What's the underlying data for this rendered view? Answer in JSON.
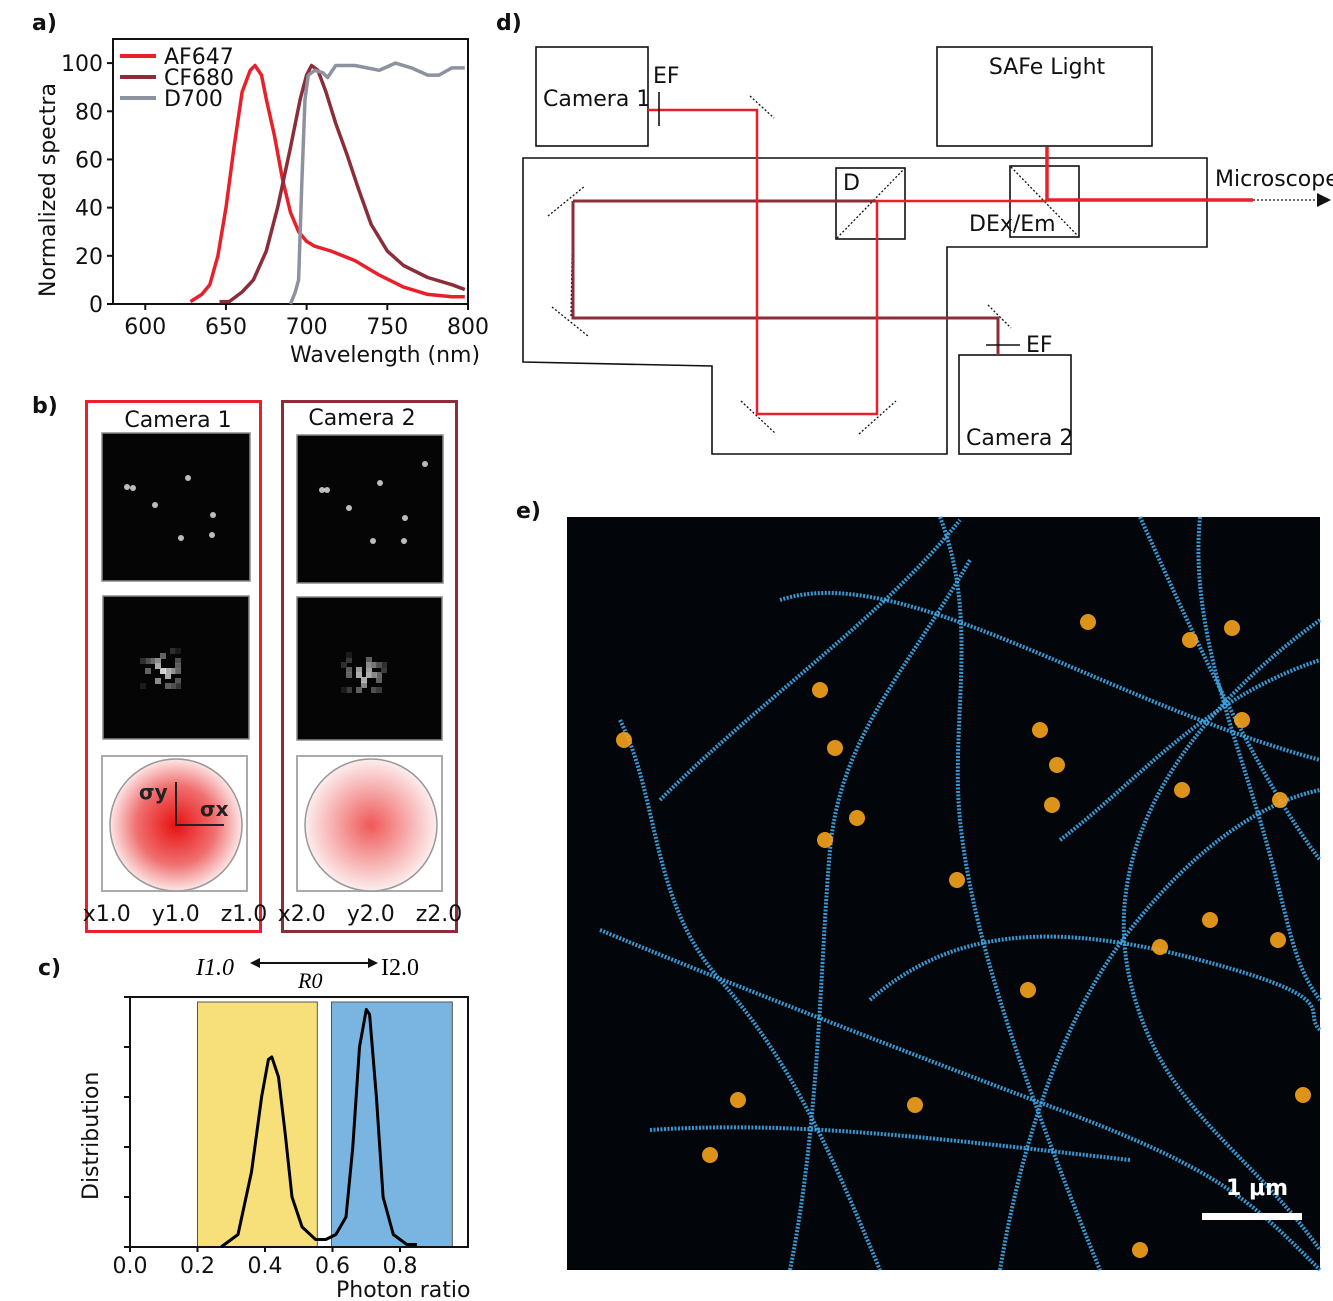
{
  "panel_labels": {
    "a": "a)",
    "b": "b)",
    "c": "c)",
    "d": "d)",
    "e": "e)"
  },
  "chart_data": [
    {
      "panel": "a",
      "type": "line",
      "xlabel": "Wavelength (nm)",
      "ylabel": "Normalized spectra",
      "xlim": [
        580,
        800
      ],
      "ylim": [
        0,
        110
      ],
      "xticks": [
        "600",
        "650",
        "700",
        "750",
        "800"
      ],
      "yticks": [
        "0",
        "20",
        "40",
        "60",
        "80",
        "100"
      ],
      "legend": "top-left",
      "series": [
        {
          "name": "AF647",
          "color": "#e8202a",
          "x": [
            628,
            635,
            640,
            645,
            650,
            655,
            660,
            665,
            668,
            672,
            675,
            680,
            685,
            690,
            695,
            700,
            705,
            715,
            730,
            745,
            760,
            775,
            790,
            798
          ],
          "y": [
            1,
            4,
            8,
            20,
            40,
            65,
            88,
            97,
            99,
            95,
            85,
            70,
            52,
            38,
            30,
            26,
            24,
            22,
            18,
            12,
            7,
            4,
            3,
            3
          ]
        },
        {
          "name": "CF680",
          "color": "#8b2e3a",
          "x": [
            646,
            652,
            660,
            667,
            675,
            682,
            690,
            696,
            700,
            703,
            707,
            712,
            718,
            725,
            732,
            740,
            750,
            760,
            775,
            790,
            798
          ],
          "y": [
            1,
            1,
            5,
            10,
            22,
            40,
            65,
            85,
            95,
            99,
            97,
            88,
            75,
            62,
            48,
            33,
            22,
            16,
            11,
            8,
            6
          ]
        },
        {
          "name": "D700",
          "color": "#8e929e",
          "x": [
            690,
            693,
            695,
            697,
            699,
            701,
            705,
            710,
            713,
            718,
            730,
            745,
            755,
            765,
            775,
            782,
            790,
            798
          ],
          "y": [
            0,
            5,
            10,
            50,
            85,
            95,
            97,
            96,
            94,
            99,
            99,
            97,
            100,
            98,
            95,
            95,
            98,
            98
          ]
        }
      ]
    },
    {
      "panel": "c",
      "type": "line",
      "xlabel": "Photon ratio",
      "ylabel": "Distribution",
      "xlim": [
        0,
        1.0
      ],
      "ylim": [
        0,
        1
      ],
      "xticks": [
        "0.0",
        "0.2",
        "0.4",
        "0.6",
        "0.8"
      ],
      "bands": [
        {
          "from": 0.2,
          "to": 0.555,
          "color": "#f7e07a"
        },
        {
          "from": 0.597,
          "to": 0.955,
          "color": "#7ab5e2"
        }
      ],
      "annotation": {
        "left": "I1.0",
        "right": "I2.0",
        "middle": "R0"
      },
      "series": [
        {
          "color": "#000000",
          "x": [
            0.27,
            0.32,
            0.36,
            0.39,
            0.41,
            0.42,
            0.44,
            0.46,
            0.48,
            0.51,
            0.55,
            0.58,
            0.61,
            0.64,
            0.66,
            0.68,
            0.7,
            0.71,
            0.73,
            0.75,
            0.78,
            0.82,
            0.85
          ],
          "y": [
            0,
            0.05,
            0.3,
            0.6,
            0.75,
            0.76,
            0.68,
            0.45,
            0.2,
            0.08,
            0.03,
            0.03,
            0.05,
            0.12,
            0.4,
            0.8,
            0.95,
            0.93,
            0.6,
            0.2,
            0.05,
            0.01,
            0.01
          ]
        }
      ]
    }
  ],
  "panel_b": {
    "camera1": {
      "title": "Camera 1",
      "sigma_y": "σy",
      "sigma_x": "σx",
      "values": "x1.0   y1.0   z1.0",
      "color": "#e8202a"
    },
    "camera2": {
      "title": "Camera 2",
      "values": "x2.0   y2.0   z2.0",
      "color": "#8b2e3a"
    }
  },
  "panel_d": {
    "camera1": "Camera 1",
    "camera2": "Camera 2",
    "ef1": "EF",
    "ef2": "EF",
    "light": "SAFe Light",
    "dichroic": "D",
    "dex": "DEx/Em",
    "microscope": "Microscope"
  },
  "panel_e": {
    "scale_bar": "1 μm",
    "filament_color": "#3fa9e8",
    "cluster_color": "#f5a21c"
  }
}
